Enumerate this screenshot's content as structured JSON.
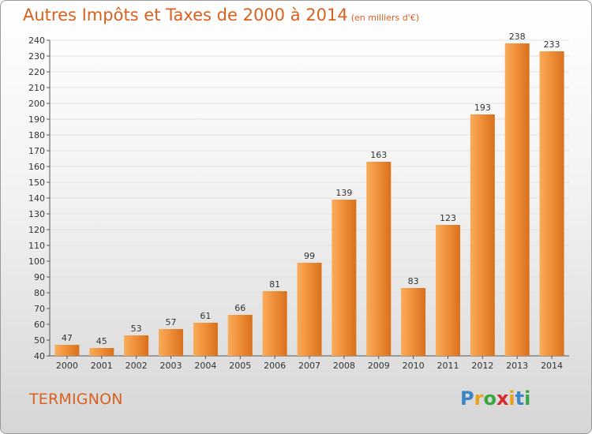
{
  "header": {
    "title": "Autres Impôts et Taxes de 2000 à 2014",
    "subtitle": "(en milliers d'€)"
  },
  "footer": {
    "commune": "TERMIGNON",
    "logo": {
      "text": "Proxiti",
      "letters": [
        "P",
        "r",
        "o",
        "x",
        "i",
        "t",
        "i"
      ],
      "colors": [
        "#3a87c8",
        "#e8a11a",
        "#3aa642",
        "#d8282c",
        "#e8a11a",
        "#3a87c8",
        "#3aa642"
      ]
    }
  },
  "chart_data": {
    "type": "bar",
    "title": "Autres Impôts et Taxes de 2000 à 2014",
    "xlabel": "",
    "ylabel": "",
    "categories": [
      "2000",
      "2001",
      "2002",
      "2003",
      "2004",
      "2005",
      "2006",
      "2007",
      "2008",
      "2009",
      "2010",
      "2011",
      "2012",
      "2013",
      "2014"
    ],
    "values": [
      47,
      45,
      53,
      57,
      61,
      66,
      81,
      99,
      139,
      163,
      83,
      123,
      193,
      238,
      233
    ],
    "ylim": [
      40,
      240
    ],
    "yticks": [
      40,
      50,
      60,
      70,
      80,
      90,
      100,
      110,
      120,
      130,
      140,
      150,
      160,
      170,
      180,
      190,
      200,
      210,
      220,
      230,
      240
    ],
    "grid": true,
    "bar_color": "#f0903a",
    "bar_color_light": "#f8ac5a",
    "bar_color_dark": "#d9701c"
  }
}
